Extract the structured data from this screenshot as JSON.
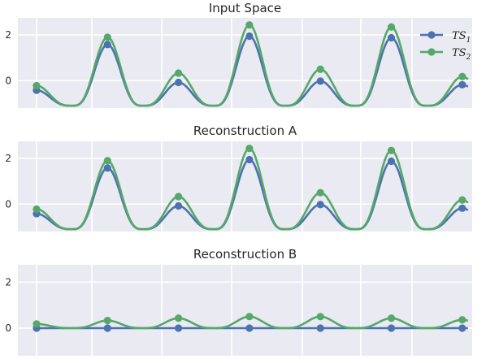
{
  "chart_data": [
    {
      "type": "line",
      "title": "Input Space",
      "xlabel": "",
      "ylabel": "",
      "yticks": [
        0,
        2
      ],
      "ytick_labels": [
        "0",
        "2"
      ],
      "ylim": [
        -1.2,
        2.75
      ],
      "grid": true,
      "legend": {
        "placement": "top-right",
        "entries": [
          "TS_1",
          "TS_2"
        ]
      },
      "series": [
        {
          "name": "TS_1",
          "color": "#4c72b0",
          "marker_x": [
            0,
            1,
            2,
            3,
            4,
            5,
            6
          ],
          "marker_y": [
            -0.42,
            1.58,
            -0.08,
            1.95,
            -0.02,
            1.88,
            -0.18
          ],
          "valley": -1.1
        },
        {
          "name": "TS_2",
          "color": "#55a868",
          "marker_x": [
            0,
            1,
            2,
            3,
            4,
            5,
            6
          ],
          "marker_y": [
            -0.22,
            1.9,
            0.33,
            2.44,
            0.5,
            2.35,
            0.18
          ],
          "valley": -1.1
        }
      ]
    },
    {
      "type": "line",
      "title": "Reconstruction A",
      "xlabel": "",
      "ylabel": "",
      "yticks": [
        0,
        2
      ],
      "ytick_labels": [
        "0",
        "2"
      ],
      "ylim": [
        -1.2,
        2.75
      ],
      "grid": true,
      "series": [
        {
          "name": "TS_1",
          "color": "#4c72b0",
          "marker_x": [
            0,
            1,
            2,
            3,
            4,
            5,
            6
          ],
          "marker_y": [
            -0.42,
            1.58,
            -0.08,
            1.95,
            -0.02,
            1.88,
            -0.18
          ],
          "valley": -1.1
        },
        {
          "name": "TS_2",
          "color": "#55a868",
          "marker_x": [
            0,
            1,
            2,
            3,
            4,
            5,
            6
          ],
          "marker_y": [
            -0.22,
            1.9,
            0.33,
            2.44,
            0.5,
            2.35,
            0.18
          ],
          "valley": -1.1
        }
      ]
    },
    {
      "type": "line",
      "title": "Reconstruction B",
      "xlabel": "",
      "ylabel": "",
      "yticks": [
        0,
        2
      ],
      "ytick_labels": [
        "0",
        "2"
      ],
      "ylim": [
        -1.2,
        2.75
      ],
      "grid": true,
      "series": [
        {
          "name": "TS_1",
          "color": "#4c72b0",
          "marker_x": [
            0,
            1,
            2,
            3,
            4,
            5,
            6
          ],
          "marker_y": [
            0,
            0,
            0,
            0,
            0,
            0,
            0
          ],
          "valley": 0
        },
        {
          "name": "TS_2",
          "color": "#55a868",
          "marker_x": [
            0,
            1,
            2,
            3,
            4,
            5,
            6
          ],
          "marker_y": [
            0.18,
            0.33,
            0.43,
            0.5,
            0.5,
            0.43,
            0.36
          ],
          "valley": 0
        }
      ]
    }
  ]
}
